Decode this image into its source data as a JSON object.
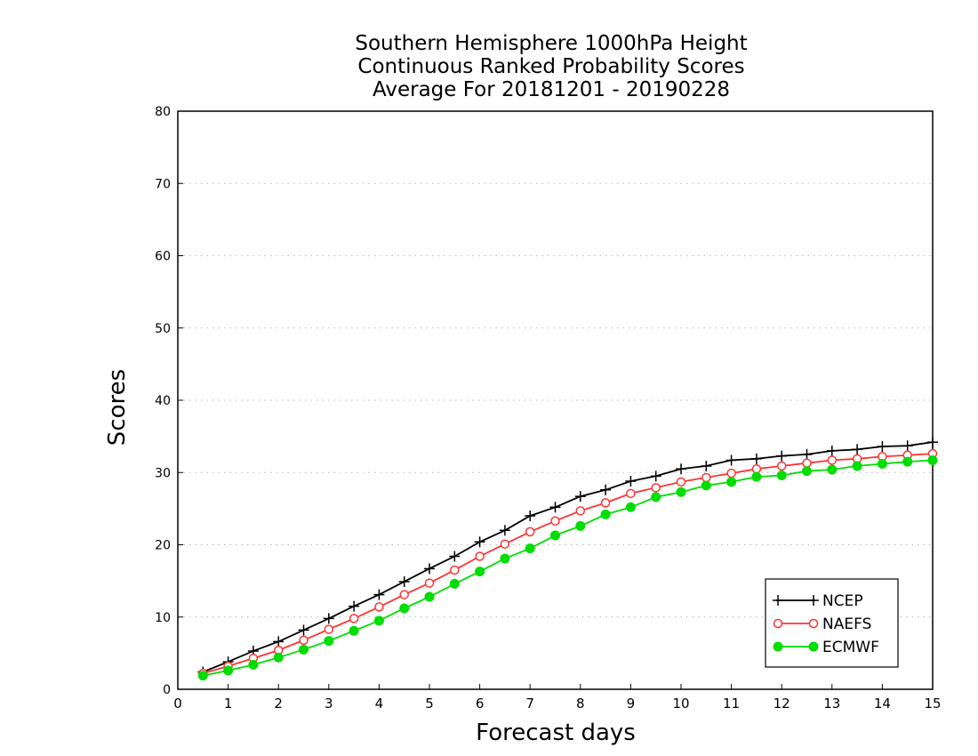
{
  "chart_data": {
    "type": "line",
    "title": [
      "Southern Hemisphere 1000hPa Height",
      "Continuous Ranked Probability Scores",
      "Average For 20181201 - 20190228"
    ],
    "xlabel": "Forecast days",
    "ylabel": "Scores",
    "xlim": [
      0,
      15
    ],
    "ylim": [
      0,
      80
    ],
    "xticks": [
      0,
      1,
      2,
      3,
      4,
      5,
      6,
      7,
      8,
      9,
      10,
      11,
      12,
      13,
      14,
      15
    ],
    "yticks": [
      0,
      10,
      20,
      30,
      40,
      50,
      60,
      70,
      80
    ],
    "grid": "horizontal dotted",
    "legend_position": "bottom-right",
    "x": [
      0.5,
      1,
      1.5,
      2,
      2.5,
      3,
      3.5,
      4,
      4.5,
      5,
      5.5,
      6,
      6.5,
      7,
      7.5,
      8,
      8.5,
      9,
      9.5,
      10,
      10.5,
      11,
      11.5,
      12,
      12.5,
      13,
      13.5,
      14,
      14.5,
      15
    ],
    "series": [
      {
        "name": "NCEP",
        "color": "#000000",
        "marker": "plus",
        "values": [
          2.4,
          3.8,
          5.3,
          6.6,
          8.2,
          9.8,
          11.5,
          13.1,
          14.9,
          16.7,
          18.4,
          20.4,
          22.0,
          24.0,
          25.2,
          26.7,
          27.6,
          28.8,
          29.5,
          30.5,
          30.9,
          31.7,
          31.9,
          32.3,
          32.5,
          33.0,
          33.2,
          33.6,
          33.7,
          34.2
        ]
      },
      {
        "name": "NAEFS",
        "color": "#ff3333",
        "marker": "open-circle",
        "values": [
          2.2,
          3.2,
          4.3,
          5.4,
          6.8,
          8.3,
          9.8,
          11.4,
          13.1,
          14.7,
          16.5,
          18.4,
          20.1,
          21.8,
          23.3,
          24.7,
          25.8,
          27.1,
          27.9,
          28.7,
          29.3,
          29.9,
          30.5,
          30.9,
          31.3,
          31.7,
          31.9,
          32.2,
          32.4,
          32.6
        ]
      },
      {
        "name": "ECMWF",
        "color": "#00dd00",
        "marker": "filled-circle",
        "values": [
          1.9,
          2.6,
          3.4,
          4.4,
          5.5,
          6.7,
          8.1,
          9.5,
          11.2,
          12.8,
          14.6,
          16.3,
          18.1,
          19.5,
          21.3,
          22.6,
          24.2,
          25.2,
          26.6,
          27.3,
          28.2,
          28.7,
          29.4,
          29.6,
          30.2,
          30.4,
          30.9,
          31.2,
          31.5,
          31.7
        ]
      }
    ]
  }
}
